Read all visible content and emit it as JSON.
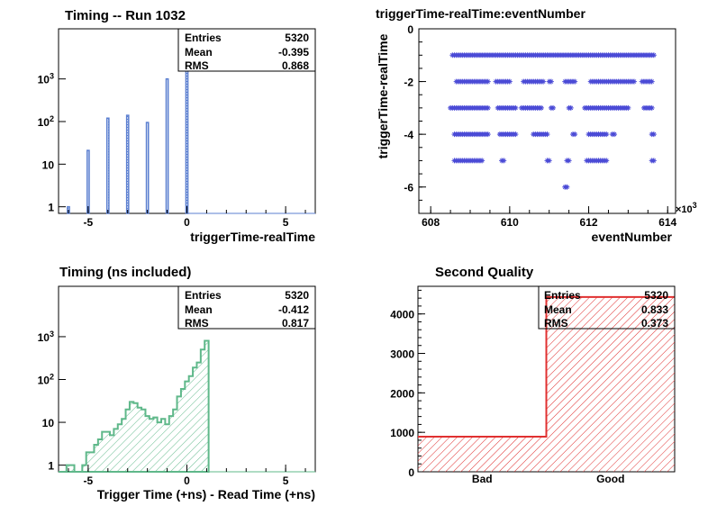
{
  "colors": {
    "hist_blue": "#5b7fd0",
    "hist_green": "#5fb88a",
    "scatter": "#4b4bd6",
    "quality_red": "#e03030"
  },
  "chart_data": [
    {
      "type": "bar",
      "title": "Timing -- Run 1032",
      "xlabel": "triggerTime-realTime",
      "ylabel": "",
      "yscale": "log",
      "xlim": [
        -6.5,
        6.5
      ],
      "ylim": [
        0.7,
        15000
      ],
      "x_ticks": [
        -5,
        0,
        5
      ],
      "y_ticks": [
        {
          "value": 1,
          "label": "1"
        },
        {
          "value": 10,
          "label": "10"
        },
        {
          "value": 100,
          "label": "10^2"
        },
        {
          "value": 1000,
          "label": "10^3"
        }
      ],
      "series": [
        {
          "x": [
            -6,
            -5,
            -4,
            -3,
            -2,
            -1,
            0
          ],
          "values": [
            1,
            21,
            120,
            140,
            95,
            1000,
            4000
          ]
        }
      ],
      "stats": {
        "entries_label": "Entries",
        "entries": "5320",
        "mean_label": "Mean",
        "mean": "-0.395",
        "rms_label": "RMS",
        "rms": "0.868"
      }
    },
    {
      "type": "scatter",
      "title": "triggerTime-realTime:eventNumber",
      "xlabel": "eventNumber",
      "ylabel": "triggerTime-realTime",
      "x_multiplier": "×10^3",
      "xlim": [
        607.7,
        614.2
      ],
      "ylim": [
        -7.0,
        0
      ],
      "x_ticks": [
        608,
        610,
        612,
        614
      ],
      "y_ticks": [
        0,
        -2,
        -4,
        -6
      ],
      "series": [
        {
          "rows": [
            {
              "y": -1,
              "segments": [
                [
                  608.55,
                  613.65
                ]
              ]
            },
            {
              "y": -2,
              "segments": [
                [
                  608.65,
                  609.45
                ],
                [
                  609.65,
                  610.0
                ],
                [
                  610.35,
                  610.85
                ],
                [
                  611.0,
                  611.05
                ],
                [
                  611.4,
                  611.65
                ],
                [
                  612.05,
                  613.15
                ],
                [
                  613.35,
                  613.6
                ]
              ]
            },
            {
              "y": -3,
              "segments": [
                [
                  608.5,
                  609.45
                ],
                [
                  609.7,
                  610.15
                ],
                [
                  610.3,
                  610.8
                ],
                [
                  611.05,
                  611.1
                ],
                [
                  611.5,
                  611.55
                ],
                [
                  611.9,
                  613.0
                ],
                [
                  613.4,
                  613.6
                ]
              ]
            },
            {
              "y": -4,
              "segments": [
                [
                  608.6,
                  609.45
                ],
                [
                  609.75,
                  610.15
                ],
                [
                  610.6,
                  610.95
                ],
                [
                  611.6,
                  611.65
                ],
                [
                  612.0,
                  612.45
                ],
                [
                  612.6,
                  612.65
                ],
                [
                  613.6,
                  613.65
                ]
              ]
            },
            {
              "y": -5,
              "segments": [
                [
                  608.6,
                  609.3
                ],
                [
                  609.8,
                  609.85
                ],
                [
                  610.95,
                  611.0
                ],
                [
                  611.45,
                  611.5
                ],
                [
                  611.95,
                  612.45
                ],
                [
                  613.6,
                  613.65
                ]
              ]
            },
            {
              "y": -6,
              "segments": [
                [
                  611.4,
                  611.45
                ]
              ]
            }
          ]
        }
      ]
    },
    {
      "type": "area",
      "title": "Timing (ns included)",
      "xlabel": "Trigger Time (+ns) - Read Time (+ns)",
      "ylabel": "",
      "yscale": "log",
      "xlim": [
        -6.5,
        6.5
      ],
      "ylim": [
        0.7,
        15000
      ],
      "x_ticks": [
        -5,
        0,
        5
      ],
      "y_ticks": [
        {
          "value": 1,
          "label": "1"
        },
        {
          "value": 10,
          "label": "10"
        },
        {
          "value": 100,
          "label": "10^2"
        },
        {
          "value": 1000,
          "label": "10^3"
        }
      ],
      "series": [
        {
          "bin_width": 0.2,
          "x_start": -6.5,
          "values": [
            0,
            0,
            1,
            1,
            0,
            0,
            1,
            2,
            2,
            3,
            4,
            6,
            6,
            5,
            7,
            9,
            12,
            20,
            30,
            28,
            22,
            20,
            14,
            12,
            13,
            10,
            12,
            9,
            14,
            20,
            40,
            60,
            90,
            120,
            190,
            250,
            500,
            800
          ]
        }
      ],
      "stats": {
        "entries_label": "Entries",
        "entries": "5320",
        "mean_label": "Mean",
        "mean": "-0.412",
        "rms_label": "RMS",
        "rms": "0.817"
      }
    },
    {
      "type": "bar",
      "title": "Second Quality",
      "xlabel": "",
      "ylabel": "",
      "categories": [
        "Bad",
        "Good"
      ],
      "values": [
        890,
        4430
      ],
      "ylim": [
        0,
        4700
      ],
      "y_ticks": [
        0,
        1000,
        2000,
        3000,
        4000
      ],
      "stats": {
        "entries_label": "Entries",
        "entries": "5320",
        "mean_label": "Mean",
        "mean": "0.833",
        "rms_label": "RMS",
        "rms": "0.373"
      }
    }
  ]
}
